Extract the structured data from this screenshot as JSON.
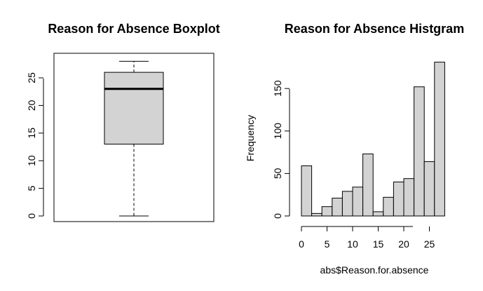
{
  "chart_data": [
    {
      "type": "boxplot",
      "title": "Reason for Absence Boxplot",
      "xlabel": "",
      "ylabel": "",
      "ylim": [
        0,
        28
      ],
      "yticks": [
        0,
        5,
        10,
        15,
        20,
        25
      ],
      "stats": {
        "min": 0,
        "q1": 13,
        "median": 23,
        "q3": 26,
        "max": 28
      },
      "box_color": "#d3d3d3"
    },
    {
      "type": "histogram",
      "title": "Reason for Absence Histgram",
      "xlabel": "abs$Reason.for.absence",
      "ylabel": "Frequency",
      "xlim": [
        0,
        28
      ],
      "ylim": [
        0,
        180
      ],
      "xticks": [
        0,
        5,
        10,
        15,
        20,
        25
      ],
      "yticks": [
        0,
        50,
        100,
        150
      ],
      "bins": [
        {
          "x0": 0,
          "x1": 2,
          "count": 59
        },
        {
          "x0": 2,
          "x1": 4,
          "count": 3
        },
        {
          "x0": 4,
          "x1": 6,
          "count": 11
        },
        {
          "x0": 6,
          "x1": 8,
          "count": 21
        },
        {
          "x0": 8,
          "x1": 10,
          "count": 29
        },
        {
          "x0": 10,
          "x1": 12,
          "count": 34
        },
        {
          "x0": 12,
          "x1": 14,
          "count": 73
        },
        {
          "x0": 14,
          "x1": 16,
          "count": 5
        },
        {
          "x0": 16,
          "x1": 18,
          "count": 22
        },
        {
          "x0": 18,
          "x1": 20,
          "count": 40
        },
        {
          "x0": 20,
          "x1": 22,
          "count": 44
        },
        {
          "x0": 22,
          "x1": 24,
          "count": 152
        },
        {
          "x0": 24,
          "x1": 26,
          "count": 64
        },
        {
          "x0": 26,
          "x1": 28,
          "count": 181
        }
      ],
      "bar_color": "#d3d3d3"
    }
  ]
}
